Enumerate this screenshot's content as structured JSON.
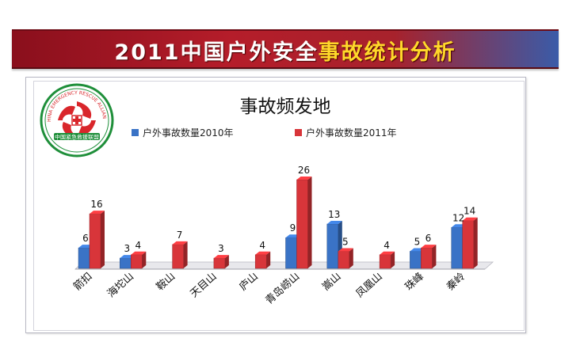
{
  "header": {
    "title_part1": "2011中国户外安全",
    "title_part2": "事故统计分析"
  },
  "logo": {
    "ring_text_top": "CHINA EMERGENCY RESCUE ALLIANCE",
    "ring_text_bottom": "中国紧急救援联盟",
    "colors": {
      "red": "#d9262b",
      "green": "#1f8f3a"
    }
  },
  "chart_data": {
    "type": "bar",
    "title": "事故频发地",
    "categories": [
      "箭扣",
      "海坨山",
      "鞍山",
      "天目山",
      "庐山",
      "青岛崂山",
      "嵩山",
      "凤凰山",
      "珠峰",
      "秦岭"
    ],
    "series": [
      {
        "name": "户外事故数量2010年",
        "values": [
          6,
          3,
          null,
          null,
          null,
          9,
          13,
          null,
          5,
          12
        ],
        "color": "#3a73c6"
      },
      {
        "name": "户外事故数量2011年",
        "values": [
          16,
          4,
          7,
          3,
          4,
          26,
          5,
          4,
          6,
          14
        ],
        "color": "#d8353a"
      }
    ],
    "ylim": [
      0,
      26
    ],
    "grid": false,
    "legend": "top"
  }
}
